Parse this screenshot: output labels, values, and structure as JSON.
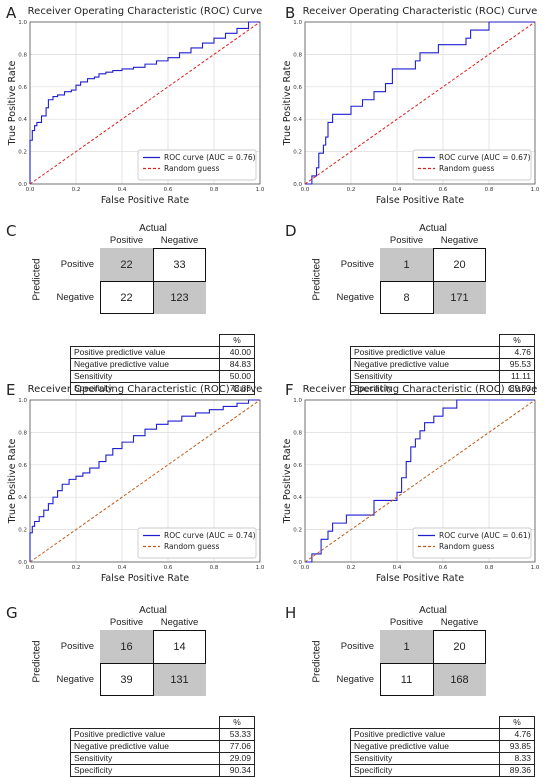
{
  "panels": {
    "A": {
      "label": "A"
    },
    "B": {
      "label": "B"
    },
    "C": {
      "label": "C"
    },
    "D": {
      "label": "D"
    },
    "E": {
      "label": "E"
    },
    "F": {
      "label": "F"
    },
    "G": {
      "label": "G"
    },
    "H": {
      "label": "H"
    }
  },
  "chart_data": [
    {
      "id": "A",
      "type": "line",
      "title": "Receiver Operating Characteristic (ROC) Curve",
      "xlabel": "False Positive Rate",
      "ylabel": "True Positive Rate",
      "xlim": [
        0,
        1
      ],
      "ylim": [
        0,
        1
      ],
      "xticks": [
        "0.0",
        "0.2",
        "0.4",
        "0.6",
        "0.8",
        "1.0"
      ],
      "yticks": [
        "0.0",
        "0.2",
        "0.4",
        "0.6",
        "0.8",
        "1.0"
      ],
      "grid": true,
      "legend_position": "bottom-right",
      "series": [
        {
          "name": "ROC curve (AUC = 0.76)",
          "color": "#1f1fd0",
          "style": "steps",
          "x": [
            0,
            0,
            0.01,
            0.01,
            0.02,
            0.02,
            0.03,
            0.03,
            0.05,
            0.05,
            0.07,
            0.07,
            0.08,
            0.08,
            0.1,
            0.1,
            0.12,
            0.12,
            0.15,
            0.15,
            0.18,
            0.18,
            0.2,
            0.2,
            0.22,
            0.22,
            0.25,
            0.25,
            0.28,
            0.28,
            0.3,
            0.3,
            0.33,
            0.33,
            0.36,
            0.36,
            0.4,
            0.4,
            0.45,
            0.45,
            0.5,
            0.5,
            0.55,
            0.55,
            0.6,
            0.6,
            0.65,
            0.65,
            0.7,
            0.7,
            0.75,
            0.75,
            0.8,
            0.8,
            0.85,
            0.85,
            0.9,
            0.9,
            0.95,
            0.95,
            1.0
          ],
          "y": [
            0,
            0.27,
            0.27,
            0.33,
            0.33,
            0.36,
            0.36,
            0.38,
            0.38,
            0.42,
            0.42,
            0.47,
            0.47,
            0.52,
            0.52,
            0.54,
            0.54,
            0.55,
            0.55,
            0.57,
            0.57,
            0.58,
            0.58,
            0.61,
            0.61,
            0.63,
            0.63,
            0.65,
            0.65,
            0.66,
            0.66,
            0.68,
            0.68,
            0.69,
            0.69,
            0.7,
            0.7,
            0.71,
            0.71,
            0.72,
            0.72,
            0.74,
            0.74,
            0.76,
            0.76,
            0.78,
            0.78,
            0.81,
            0.81,
            0.84,
            0.84,
            0.87,
            0.87,
            0.9,
            0.9,
            0.93,
            0.93,
            0.96,
            0.96,
            1.0,
            1.0
          ]
        },
        {
          "name": "Random guess",
          "color": "#e02020",
          "style": "dashed",
          "x": [
            0,
            1
          ],
          "y": [
            0,
            1
          ]
        }
      ]
    },
    {
      "id": "B",
      "type": "line",
      "title": "Receiver Operating Characteristic (ROC) Curve",
      "xlabel": "False Positive Rate",
      "ylabel": "True Positive Rate",
      "xlim": [
        0,
        1
      ],
      "ylim": [
        0,
        1
      ],
      "xticks": [
        "0.0",
        "0.2",
        "0.4",
        "0.6",
        "0.8",
        "1.0"
      ],
      "yticks": [
        "0.0",
        "0.2",
        "0.4",
        "0.6",
        "0.8",
        "1.0"
      ],
      "grid": true,
      "legend_position": "bottom-right",
      "series": [
        {
          "name": "ROC curve (AUC = 0.67)",
          "color": "#1f1fd0",
          "style": "steps",
          "x": [
            0,
            0.03,
            0.03,
            0.05,
            0.05,
            0.06,
            0.06,
            0.08,
            0.08,
            0.09,
            0.09,
            0.1,
            0.1,
            0.12,
            0.12,
            0.14,
            0.14,
            0.2,
            0.2,
            0.25,
            0.25,
            0.3,
            0.3,
            0.35,
            0.35,
            0.38,
            0.38,
            0.48,
            0.48,
            0.5,
            0.5,
            0.58,
            0.58,
            0.66,
            0.66,
            0.7,
            0.7,
            0.72,
            0.72,
            0.76,
            0.76,
            0.8,
            0.8,
            0.9,
            0.9,
            1.0
          ],
          "y": [
            0,
            0,
            0.05,
            0.05,
            0.1,
            0.1,
            0.19,
            0.19,
            0.24,
            0.24,
            0.29,
            0.29,
            0.38,
            0.38,
            0.43,
            0.43,
            0.43,
            0.43,
            0.48,
            0.48,
            0.52,
            0.52,
            0.57,
            0.57,
            0.62,
            0.62,
            0.71,
            0.71,
            0.76,
            0.76,
            0.81,
            0.81,
            0.86,
            0.86,
            0.86,
            0.86,
            0.9,
            0.9,
            0.95,
            0.95,
            0.95,
            0.95,
            1.0,
            1.0,
            1.0,
            1.0
          ]
        },
        {
          "name": "Random guess",
          "color": "#e02020",
          "style": "dashed",
          "x": [
            0,
            1
          ],
          "y": [
            0,
            1
          ]
        }
      ]
    },
    {
      "id": "E",
      "type": "line",
      "title": "Receiver Operating Characteristic (ROC) Curve",
      "xlabel": "False Positive Rate",
      "ylabel": "True Positive Rate",
      "xlim": [
        0,
        1
      ],
      "ylim": [
        0,
        1
      ],
      "xticks": [
        "0.0",
        "0.2",
        "0.4",
        "0.6",
        "0.8",
        "1.0"
      ],
      "yticks": [
        "0.0",
        "0.2",
        "0.4",
        "0.6",
        "0.8",
        "1.0"
      ],
      "grid": true,
      "legend_position": "bottom-right",
      "series": [
        {
          "name": "ROC curve (AUC = 0.74)",
          "color": "#1f1fd0",
          "style": "steps",
          "x": [
            0,
            0,
            0.01,
            0.01,
            0.02,
            0.02,
            0.04,
            0.04,
            0.06,
            0.06,
            0.08,
            0.08,
            0.1,
            0.1,
            0.12,
            0.12,
            0.14,
            0.14,
            0.17,
            0.17,
            0.2,
            0.2,
            0.23,
            0.23,
            0.26,
            0.26,
            0.3,
            0.3,
            0.33,
            0.33,
            0.36,
            0.36,
            0.4,
            0.4,
            0.45,
            0.45,
            0.5,
            0.5,
            0.55,
            0.55,
            0.6,
            0.6,
            0.66,
            0.66,
            0.72,
            0.72,
            0.78,
            0.78,
            0.84,
            0.84,
            0.9,
            0.9,
            0.95,
            0.95,
            1.0
          ],
          "y": [
            0,
            0.18,
            0.18,
            0.22,
            0.22,
            0.25,
            0.25,
            0.28,
            0.28,
            0.32,
            0.32,
            0.36,
            0.36,
            0.4,
            0.4,
            0.44,
            0.44,
            0.48,
            0.48,
            0.51,
            0.51,
            0.53,
            0.53,
            0.55,
            0.55,
            0.58,
            0.58,
            0.62,
            0.62,
            0.66,
            0.66,
            0.7,
            0.7,
            0.74,
            0.74,
            0.78,
            0.78,
            0.82,
            0.82,
            0.85,
            0.85,
            0.87,
            0.87,
            0.9,
            0.9,
            0.92,
            0.92,
            0.94,
            0.94,
            0.96,
            0.96,
            0.98,
            0.98,
            1.0,
            1.0
          ]
        },
        {
          "name": "Random guess",
          "color": "#c05a1a",
          "style": "dashed",
          "x": [
            0,
            1
          ],
          "y": [
            0,
            1
          ]
        }
      ]
    },
    {
      "id": "F",
      "type": "line",
      "title": "Receiver Operating Characteristic (ROC) Curve",
      "xlabel": "False Positive Rate",
      "ylabel": "True Positive Rate",
      "xlim": [
        0,
        1
      ],
      "ylim": [
        0,
        1
      ],
      "xticks": [
        "0.0",
        "0.2",
        "0.4",
        "0.6",
        "0.8",
        "1.0"
      ],
      "yticks": [
        "0.0",
        "0.2",
        "0.4",
        "0.6",
        "0.8",
        "1.0"
      ],
      "grid": true,
      "legend_position": "bottom-right",
      "series": [
        {
          "name": "ROC curve (AUC = 0.61)",
          "color": "#1f1fd0",
          "style": "steps",
          "x": [
            0,
            0.03,
            0.03,
            0.07,
            0.07,
            0.1,
            0.1,
            0.12,
            0.12,
            0.18,
            0.18,
            0.3,
            0.3,
            0.4,
            0.4,
            0.42,
            0.42,
            0.44,
            0.44,
            0.46,
            0.46,
            0.48,
            0.48,
            0.5,
            0.5,
            0.52,
            0.52,
            0.56,
            0.56,
            0.6,
            0.6,
            0.62,
            0.62,
            0.66,
            0.66,
            0.94,
            0.94,
            1.0
          ],
          "y": [
            0,
            0,
            0.05,
            0.05,
            0.14,
            0.14,
            0.19,
            0.19,
            0.24,
            0.24,
            0.29,
            0.29,
            0.38,
            0.38,
            0.43,
            0.43,
            0.52,
            0.52,
            0.62,
            0.62,
            0.71,
            0.71,
            0.76,
            0.76,
            0.81,
            0.81,
            0.86,
            0.86,
            0.9,
            0.9,
            0.95,
            0.95,
            0.95,
            0.95,
            1.0,
            1.0,
            1.0,
            1.0
          ]
        },
        {
          "name": "Random guess",
          "color": "#c05a1a",
          "style": "dashed",
          "x": [
            0,
            1
          ],
          "y": [
            0,
            1
          ]
        }
      ]
    }
  ],
  "confusion": {
    "C": {
      "actual": "Actual",
      "predicted": "Predicted",
      "cols": [
        "Positive",
        "Negative"
      ],
      "rows": [
        "Positive",
        "Negative"
      ],
      "cells": {
        "tp": "22",
        "fp": "33",
        "fn": "22",
        "tn": "123"
      },
      "pct_header": "%",
      "stats": [
        {
          "name": "Positive predictive value",
          "value": "40.00"
        },
        {
          "name": "Negative predictive value",
          "value": "84.83"
        },
        {
          "name": "Sensitivity",
          "value": "50.00"
        },
        {
          "name": "Specificity",
          "value": "78.85"
        }
      ]
    },
    "D": {
      "actual": "Actual",
      "predicted": "Predicted",
      "cols": [
        "Positive",
        "Negative"
      ],
      "rows": [
        "Positive",
        "Negative"
      ],
      "cells": {
        "tp": "1",
        "fp": "20",
        "fn": "8",
        "tn": "171"
      },
      "pct_header": "%",
      "stats": [
        {
          "name": "Positive predictive value",
          "value": "4.76"
        },
        {
          "name": "Negative predictive value",
          "value": "95.53"
        },
        {
          "name": "Sensitivity",
          "value": "11.11"
        },
        {
          "name": "Specificity",
          "value": "89.53"
        }
      ]
    },
    "G": {
      "actual": "Actual",
      "predicted": "Predicted",
      "cols": [
        "Positive",
        "Negative"
      ],
      "rows": [
        "Positive",
        "Negative"
      ],
      "cells": {
        "tp": "16",
        "fp": "14",
        "fn": "39",
        "tn": "131"
      },
      "pct_header": "%",
      "stats": [
        {
          "name": "Positive predictive value",
          "value": "53.33"
        },
        {
          "name": "Negative predictive value",
          "value": "77.06"
        },
        {
          "name": "Sensitivity",
          "value": "29.09"
        },
        {
          "name": "Specificity",
          "value": "90.34"
        }
      ]
    },
    "H": {
      "actual": "Actual",
      "predicted": "Predicted",
      "cols": [
        "Positive",
        "Negative"
      ],
      "rows": [
        "Positive",
        "Negative"
      ],
      "cells": {
        "tp": "1",
        "fp": "20",
        "fn": "11",
        "tn": "168"
      },
      "pct_header": "%",
      "stats": [
        {
          "name": "Positive predictive value",
          "value": "4.76"
        },
        {
          "name": "Negative predictive value",
          "value": "93.85"
        },
        {
          "name": "Sensitivity",
          "value": "8.33"
        },
        {
          "name": "Specificity",
          "value": "89.36"
        }
      ]
    }
  }
}
